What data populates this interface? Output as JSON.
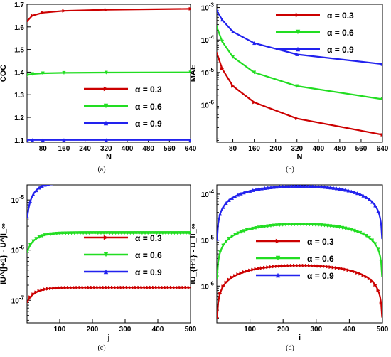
{
  "colors": {
    "red": "#cc0000",
    "green": "#22dd22",
    "blue": "#2222ee"
  },
  "chart_data": [
    {
      "panel": "a",
      "type": "line",
      "caption": "(a)",
      "xlabel": "N",
      "ylabel": "COC",
      "xlim": [
        20,
        640
      ],
      "ylim": [
        1.09,
        1.7
      ],
      "yscale": "linear",
      "xticks": [
        80,
        160,
        240,
        320,
        400,
        480,
        560,
        640
      ],
      "yticks": [
        1.1,
        1.2,
        1.3,
        1.4,
        1.5,
        1.6,
        1.7
      ],
      "ytick_labels": [
        "1.1",
        "1.2",
        "1.3",
        "1.4",
        "1.5",
        "1.6",
        "1.7"
      ],
      "legend_position": "lower-right",
      "series": [
        {
          "name": "α = 0.3",
          "color": "red",
          "marker": "right-triangle",
          "x": [
            20,
            40,
            80,
            160,
            320,
            640
          ],
          "y": [
            1.625,
            1.65,
            1.663,
            1.671,
            1.676,
            1.68
          ]
        },
        {
          "name": "α = 0.6",
          "color": "green",
          "marker": "down-triangle",
          "x": [
            20,
            40,
            80,
            160,
            320,
            640
          ],
          "y": [
            1.387,
            1.392,
            1.395,
            1.397,
            1.398,
            1.399
          ]
        },
        {
          "name": "α = 0.9",
          "color": "blue",
          "marker": "up-triangle",
          "x": [
            20,
            40,
            80,
            160,
            320,
            640
          ],
          "y": [
            1.1,
            1.1,
            1.1,
            1.1,
            1.1,
            1.1
          ]
        }
      ]
    },
    {
      "panel": "b",
      "type": "line",
      "caption": "(b)",
      "xlabel": "N",
      "ylabel": "MAE",
      "xlim": [
        20,
        640
      ],
      "ylim": [
        -7.15,
        -2.9
      ],
      "yscale": "log",
      "xticks": [
        80,
        160,
        240,
        320,
        400,
        480,
        560,
        640
      ],
      "yticks": [
        -3,
        -4,
        -5,
        -6
      ],
      "ytick_labels": [
        "10^-3",
        "10^-4",
        "10^-5",
        "10^-6"
      ],
      "legend_position": "top-right",
      "series": [
        {
          "name": "α = 0.3",
          "color": "red",
          "marker": "right-triangle",
          "x": [
            20,
            40,
            80,
            160,
            320,
            640
          ],
          "y": [
            4e-05,
            1.3e-05,
            3.8e-06,
            1.2e-06,
            3.8e-07,
            1.2e-07
          ]
        },
        {
          "name": "α = 0.6",
          "color": "green",
          "marker": "down-triangle",
          "x": [
            20,
            40,
            80,
            160,
            320,
            640
          ],
          "y": [
            0.00025,
            9e-05,
            3e-05,
            1e-05,
            3.8e-06,
            1.5e-06
          ]
        },
        {
          "name": "α = 0.9",
          "color": "blue",
          "marker": "up-triangle",
          "x": [
            20,
            40,
            80,
            160,
            320,
            640
          ],
          "y": [
            0.0008,
            0.00042,
            0.00018,
            8e-05,
            3.6e-05,
            1.8e-05
          ]
        }
      ]
    },
    {
      "panel": "c",
      "type": "line",
      "caption": "(c)",
      "xlabel": "j",
      "ylabel": "IU^{j+1} - U^jI_∞",
      "xlim": [
        0,
        500
      ],
      "ylim": [
        -7.45,
        -4.7
      ],
      "yscale": "log",
      "xticks": [
        100,
        200,
        300,
        400,
        500
      ],
      "yticks": [
        -5,
        -6,
        -7
      ],
      "ytick_labels": [
        "10^-5",
        "10^-6",
        "10^-7"
      ],
      "legend_position": "lower-right",
      "series": [
        {
          "name": "α = 0.3",
          "color": "red",
          "marker": "right-triangle",
          "saturate": 1.8e-07,
          "start": 9e-08,
          "rate": 30
        },
        {
          "name": "α = 0.6",
          "color": "green",
          "marker": "down-triangle",
          "saturate": 2.2e-06,
          "start": 9e-07,
          "rate": 30
        },
        {
          "name": "α = 0.9",
          "color": "blue",
          "marker": "up-triangle",
          "saturate": 2.3e-05,
          "start": 4e-06,
          "rate": 30
        }
      ]
    },
    {
      "panel": "d",
      "type": "line",
      "caption": "(d)",
      "xlabel": "i",
      "ylabel": "IU_{i+1} - U_iI_∞",
      "xlim": [
        0,
        500
      ],
      "ylim": [
        -6.8,
        -3.8
      ],
      "yscale": "log",
      "xticks": [
        100,
        200,
        300,
        400,
        500
      ],
      "yticks": [
        -4,
        -5,
        -6
      ],
      "ytick_labels": [
        "10^-4",
        "10^-5",
        "10^-6"
      ],
      "legend_position": "lower-center",
      "series": [
        {
          "name": "α = 0.3",
          "color": "red",
          "marker": "right-triangle",
          "peak": 2.8e-06,
          "peak_at": 250
        },
        {
          "name": "α = 0.6",
          "color": "green",
          "marker": "down-triangle",
          "peak": 2.2e-05,
          "peak_at": 250
        },
        {
          "name": "α = 0.9",
          "color": "blue",
          "marker": "up-triangle",
          "peak": 0.00015,
          "peak_at": 250
        }
      ]
    }
  ]
}
